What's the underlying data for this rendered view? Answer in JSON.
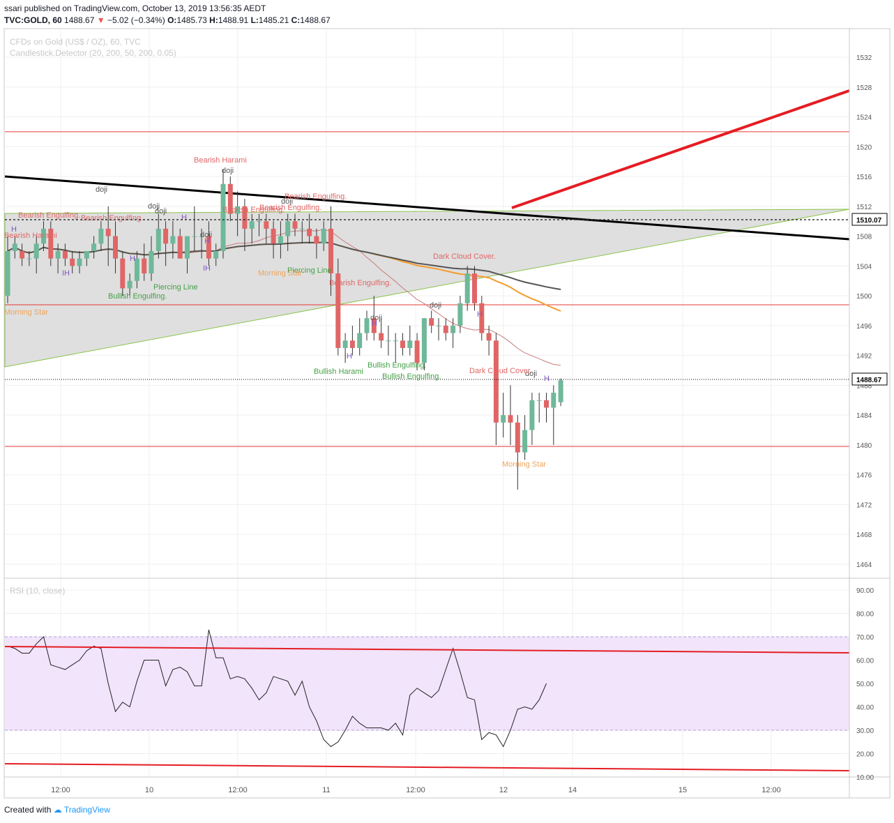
{
  "header": {
    "publisher_line": "ssari published on TradingView.com, October 13, 2019 13:56:35 AEDT",
    "symbol": "TVC:GOLD, 60",
    "change_arrow": "▼",
    "change": "−5.02 (−0.34%)",
    "ohlc": [
      {
        "label": "O:",
        "value": "1485.73"
      },
      {
        "label": "H:",
        "value": "1488.91"
      },
      {
        "label": "L:",
        "value": "1485.21"
      },
      {
        "label": "C:",
        "value": "1488.67"
      }
    ],
    "price": "1488.67"
  },
  "main_pane": {
    "title": "CFDs on Gold (US$ / OZ), 60, TVC",
    "indicator": "Candlestick.Detector (20, 200, 50, 200, 0.05)"
  },
  "rsi_pane": {
    "title": "RSI (10, close)"
  },
  "footer": {
    "created_with": "Created with",
    "brand": "TradingView"
  },
  "colors": {
    "up": "#6fb89a",
    "down": "#e06666",
    "trendline": "#e51c23",
    "rsi_band": "#f1e4fb"
  },
  "chart_data": [
    {
      "type": "candlestick",
      "symbol": "TVC:GOLD",
      "timeframe": "60",
      "ylim": [
        1461,
        1535
      ],
      "y_ticks": [
        1464,
        1468,
        1472,
        1476,
        1480,
        1484,
        1488,
        1492,
        1496,
        1500,
        1504,
        1508,
        1512,
        1516,
        1520,
        1524,
        1528,
        1532
      ],
      "x_ticks": [
        "12:00",
        "10",
        "12:00",
        "11",
        "12:00",
        "12",
        "14",
        "15",
        "12:00"
      ],
      "price_labels": [
        {
          "value": 1510.07,
          "label": "1510.07"
        },
        {
          "value": 1488.67,
          "label": "1488.67"
        }
      ],
      "horizontal_levels": [
        1522,
        1498.8,
        1479.8
      ],
      "candles": [
        [
          1500,
          1508,
          1499,
          1506
        ],
        [
          1506,
          1508,
          1505,
          1507
        ],
        [
          1506,
          1507,
          1504,
          1505
        ],
        [
          1505,
          1506,
          1504,
          1505
        ],
        [
          1505,
          1508,
          1503,
          1507
        ],
        [
          1507,
          1510,
          1506,
          1509
        ],
        [
          1509,
          1510,
          1504,
          1505
        ],
        [
          1505,
          1507,
          1503,
          1506
        ],
        [
          1506,
          1507,
          1504,
          1505
        ],
        [
          1505,
          1506,
          1503,
          1504
        ],
        [
          1504,
          1506,
          1503,
          1505
        ],
        [
          1505,
          1506,
          1504,
          1506
        ],
        [
          1506,
          1508,
          1505,
          1507
        ],
        [
          1507,
          1510,
          1506,
          1509
        ],
        [
          1509,
          1512,
          1504,
          1508
        ],
        [
          1508,
          1510,
          1503,
          1505
        ],
        [
          1505,
          1506,
          1500,
          1501
        ],
        [
          1501,
          1503,
          1500,
          1502
        ],
        [
          1502,
          1506,
          1501,
          1505
        ],
        [
          1505,
          1507,
          1502,
          1503
        ],
        [
          1503,
          1508,
          1502,
          1506
        ],
        [
          1506,
          1511,
          1505,
          1509
        ],
        [
          1509,
          1510,
          1504,
          1507
        ],
        [
          1507,
          1510,
          1505,
          1508
        ],
        [
          1508,
          1509,
          1505,
          1505
        ],
        [
          1505,
          1508,
          1503,
          1508
        ],
        [
          1508,
          1512,
          1506,
          1508
        ],
        [
          1508,
          1509,
          1505,
          1508
        ],
        [
          1508,
          1510,
          1504,
          1505
        ],
        [
          1505,
          1507,
          1504,
          1506
        ],
        [
          1506,
          1517,
          1505,
          1515
        ],
        [
          1515,
          1516,
          1510,
          1511
        ],
        [
          1511,
          1514,
          1508,
          1512
        ],
        [
          1512,
          1513,
          1506,
          1509
        ],
        [
          1509,
          1511,
          1507,
          1510
        ],
        [
          1510,
          1511,
          1508,
          1510
        ],
        [
          1510,
          1511,
          1507,
          1509
        ],
        [
          1509,
          1510,
          1505,
          1507
        ],
        [
          1507,
          1510,
          1505,
          1508
        ],
        [
          1508,
          1511,
          1506,
          1510
        ],
        [
          1510,
          1511,
          1508,
          1509
        ],
        [
          1509,
          1510,
          1507,
          1509
        ],
        [
          1509,
          1511,
          1507,
          1508
        ],
        [
          1508,
          1509,
          1505,
          1507
        ],
        [
          1507,
          1510,
          1506,
          1509
        ],
        [
          1509,
          1512,
          1500,
          1503
        ],
        [
          1503,
          1505,
          1492,
          1493
        ],
        [
          1493,
          1495,
          1491,
          1494
        ],
        [
          1494,
          1496,
          1492,
          1493
        ],
        [
          1493,
          1497,
          1492,
          1495
        ],
        [
          1495,
          1498,
          1494,
          1497
        ],
        [
          1497,
          1500,
          1494,
          1495
        ],
        [
          1495,
          1497,
          1493,
          1494
        ],
        [
          1494,
          1496,
          1492,
          1494
        ],
        [
          1494,
          1495,
          1491,
          1494
        ],
        [
          1494,
          1495,
          1492,
          1493
        ],
        [
          1493,
          1496,
          1492,
          1494
        ],
        [
          1494,
          1495,
          1490,
          1491
        ],
        [
          1491,
          1497,
          1490,
          1497
        ],
        [
          1497,
          1498,
          1495,
          1496
        ],
        [
          1496,
          1497,
          1494,
          1496
        ],
        [
          1496,
          1497,
          1494,
          1495
        ],
        [
          1495,
          1497,
          1493,
          1496
        ],
        [
          1496,
          1500,
          1495,
          1499
        ],
        [
          1499,
          1504,
          1498,
          1503
        ],
        [
          1503,
          1504,
          1498,
          1499
        ],
        [
          1499,
          1500,
          1494,
          1495
        ],
        [
          1495,
          1496,
          1492,
          1494
        ],
        [
          1494,
          1495,
          1480,
          1483
        ],
        [
          1483,
          1487,
          1481,
          1484
        ],
        [
          1484,
          1488,
          1480,
          1483
        ],
        [
          1483,
          1484,
          1474,
          1479
        ],
        [
          1479,
          1484,
          1478,
          1482
        ],
        [
          1482,
          1487,
          1480,
          1486
        ],
        [
          1486,
          1487,
          1483,
          1486
        ],
        [
          1486,
          1487,
          1483,
          1485
        ],
        [
          1485,
          1488,
          1480,
          1487
        ],
        [
          1485.73,
          1488.91,
          1485.21,
          1488.67
        ]
      ],
      "patterns": [
        {
          "label": "Bearish Harami",
          "kind": "bearish"
        },
        {
          "label": "doji",
          "kind": "neutral"
        },
        {
          "label": "Bearish Engulfing.",
          "kind": "bearish"
        },
        {
          "label": "Piercing Line",
          "kind": "bullish"
        },
        {
          "label": "Bullish Engulfing.",
          "kind": "bullish"
        },
        {
          "label": "Morning Star",
          "kind": "star"
        },
        {
          "label": "Bullish Harami",
          "kind": "bullish"
        },
        {
          "label": "Dark Cloud Cover.",
          "kind": "bearish"
        },
        {
          "label": "H",
          "kind": "harami"
        },
        {
          "label": "IH",
          "kind": "harami"
        }
      ]
    },
    {
      "type": "line",
      "name": "RSI (10, close)",
      "ylim": [
        8,
        93
      ],
      "y_ticks": [
        10,
        20,
        30,
        40,
        50,
        60,
        70,
        80,
        90
      ],
      "band": [
        30,
        70
      ],
      "values": [
        66,
        65,
        63,
        63,
        67,
        70,
        58,
        57,
        56,
        58,
        60,
        64,
        66,
        65,
        50,
        38,
        42,
        40,
        51,
        60,
        60,
        60,
        49,
        56,
        57,
        55,
        49,
        49,
        73,
        61,
        61,
        52,
        53,
        52,
        48,
        43,
        46,
        53,
        52,
        51,
        45,
        51,
        40,
        34,
        26,
        23,
        25,
        30,
        36,
        33,
        31,
        31,
        31,
        30,
        33,
        28,
        45,
        48,
        46,
        44,
        47,
        56,
        65,
        55,
        44,
        43,
        26,
        29,
        28,
        23,
        30,
        39,
        40,
        39,
        43,
        50
      ]
    }
  ]
}
